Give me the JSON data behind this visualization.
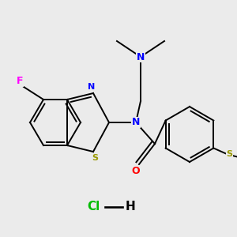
{
  "background_color": "#ebebeb",
  "atom_colors": {
    "N": "#0000ff",
    "O": "#ff0000",
    "S": "#999900",
    "F": "#ff00ff",
    "C": "#000000",
    "Cl": "#00bb00",
    "H": "#000000"
  },
  "bond_color": "#000000",
  "lw": 1.4
}
